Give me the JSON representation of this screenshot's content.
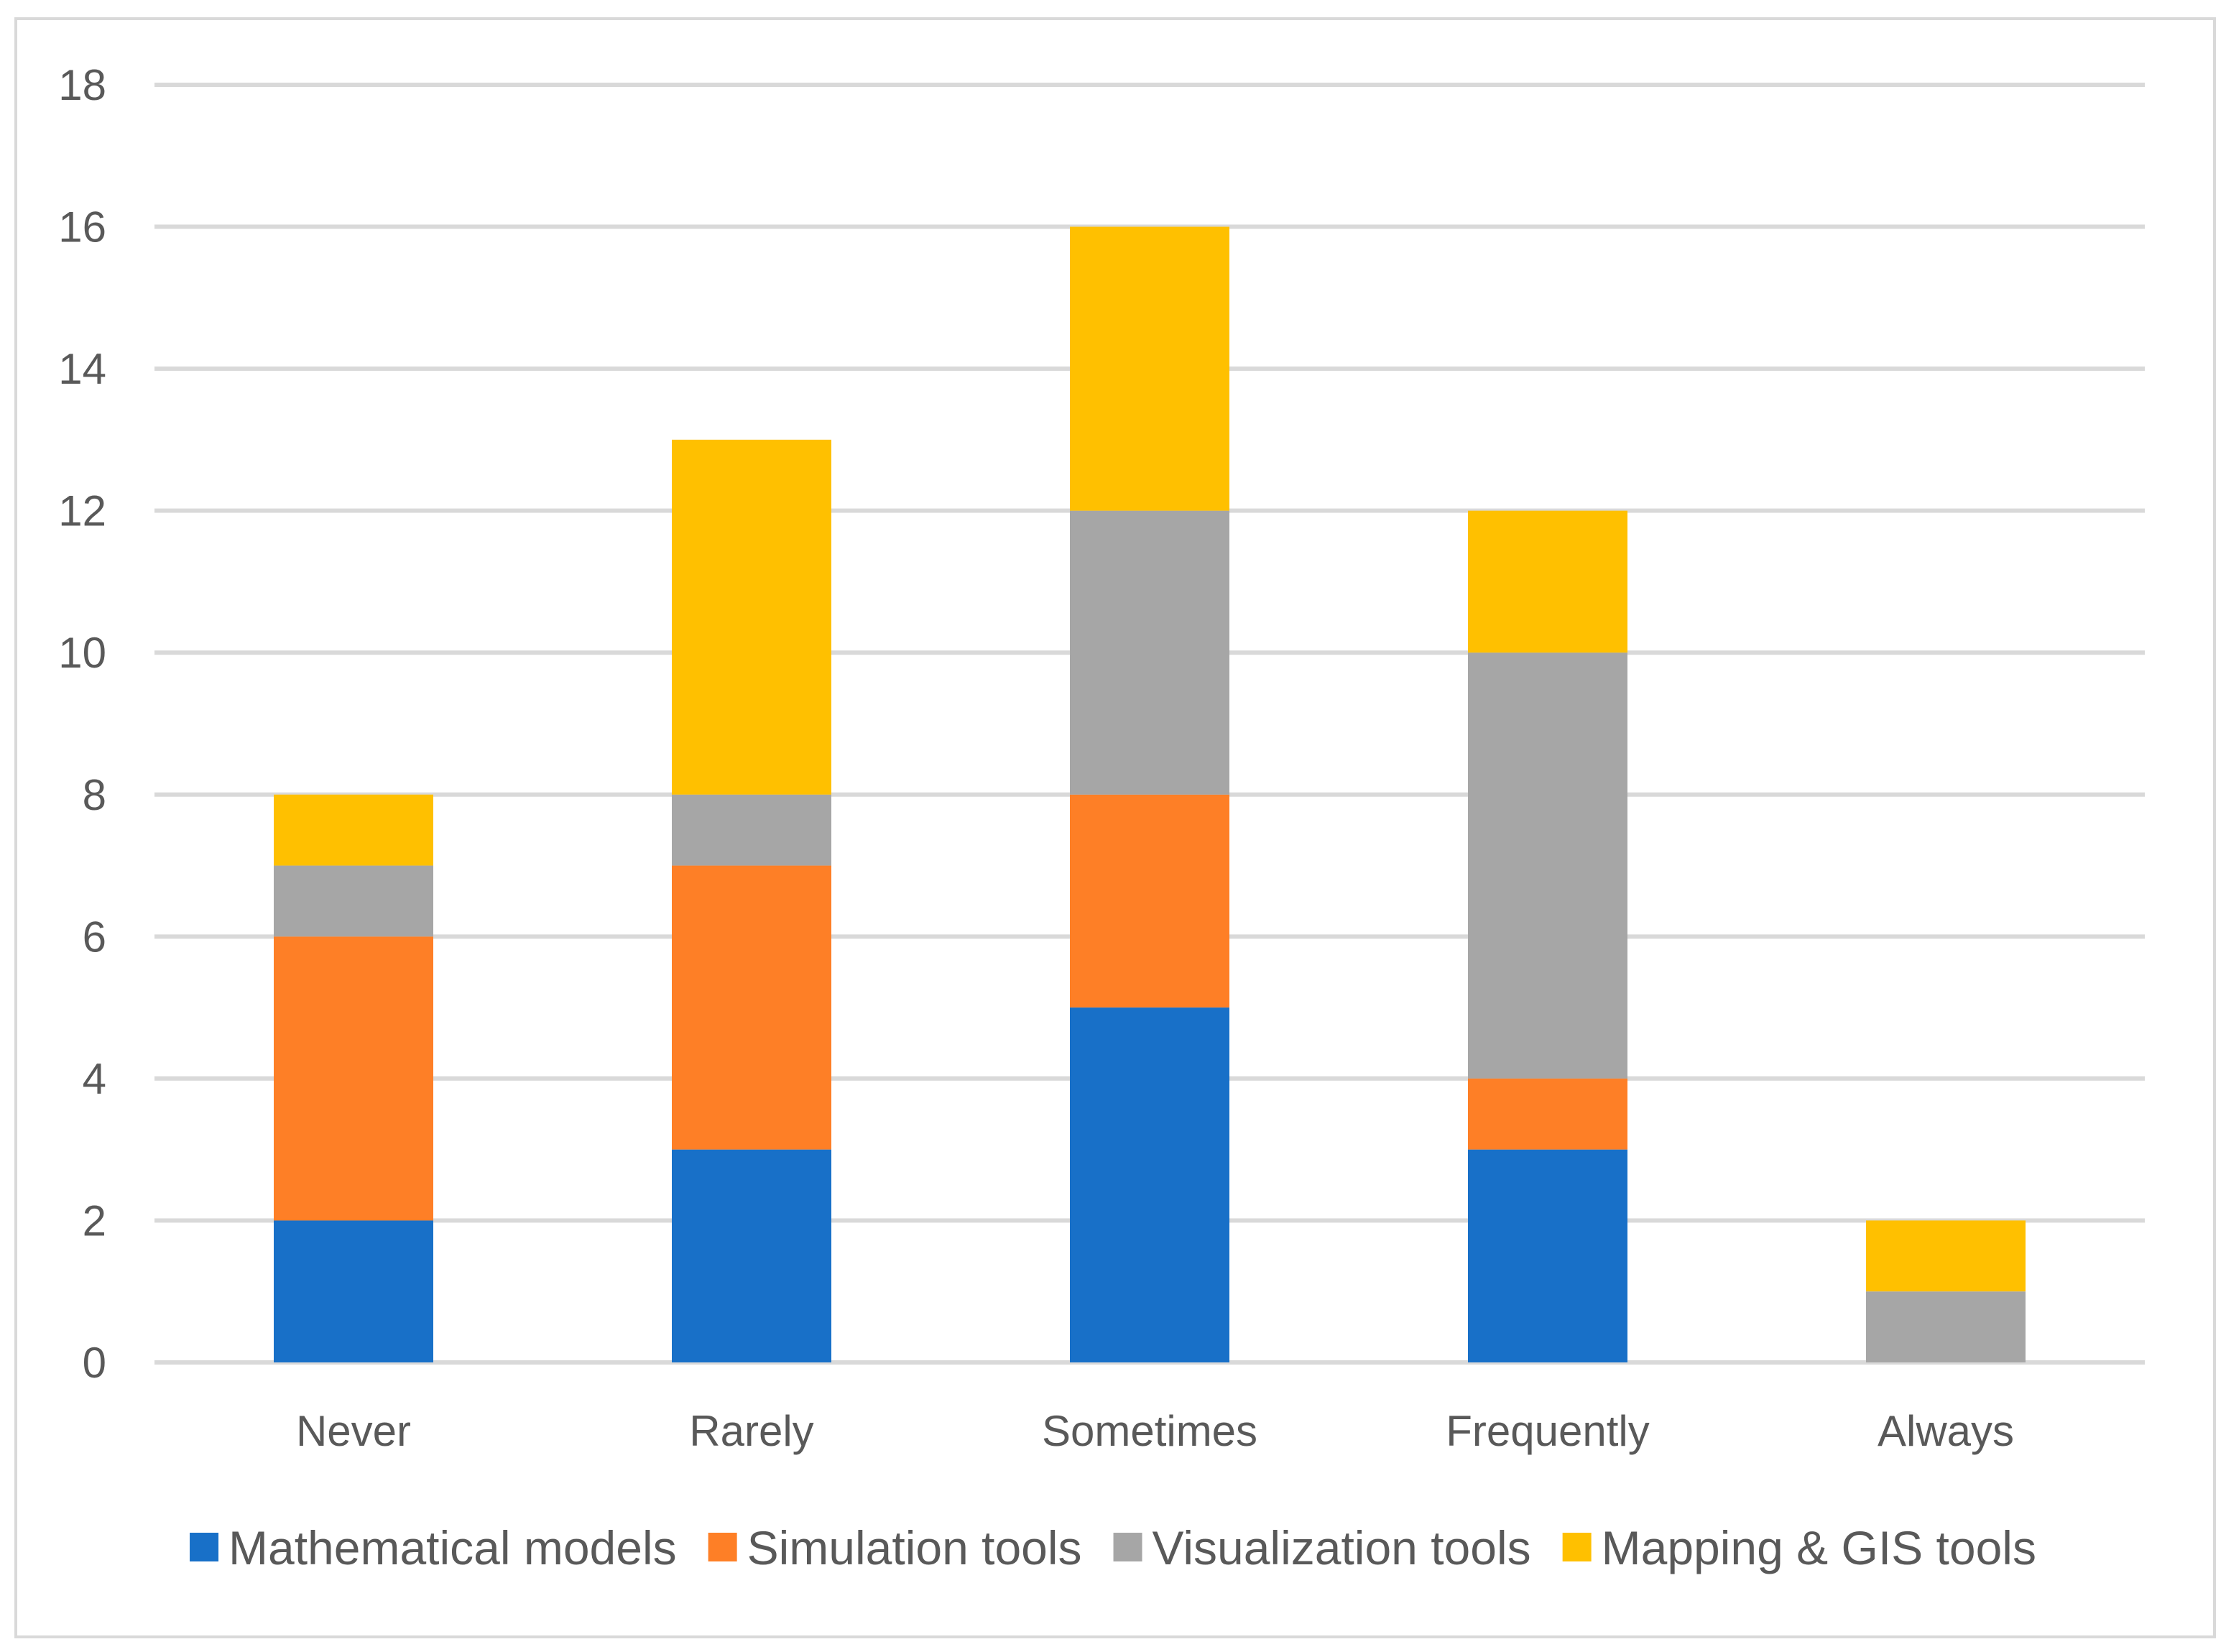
{
  "chart_data": {
    "type": "bar",
    "stacked": true,
    "title": "",
    "xlabel": "",
    "ylabel": "",
    "categories": [
      "Never",
      "Rarely",
      "Sometimes",
      "Frequently",
      "Always"
    ],
    "series": [
      {
        "name": "Mathematical models",
        "color": "#1870c8",
        "values": [
          2,
          3,
          5,
          3,
          0
        ]
      },
      {
        "name": "Simulation tools",
        "color": "#fe7f26",
        "values": [
          4,
          4,
          3,
          1,
          0
        ]
      },
      {
        "name": "Visualization tools",
        "color": "#a6a6a6",
        "values": [
          1,
          1,
          4,
          6,
          1
        ]
      },
      {
        "name": "Mapping & GIS tools",
        "color": "#ffc000",
        "values": [
          1,
          5,
          4,
          2,
          1
        ]
      }
    ],
    "ylim": [
      0,
      18
    ],
    "yticks": [
      0,
      2,
      4,
      6,
      8,
      10,
      12,
      14,
      16,
      18
    ],
    "grid": true,
    "legend": "bottom"
  }
}
